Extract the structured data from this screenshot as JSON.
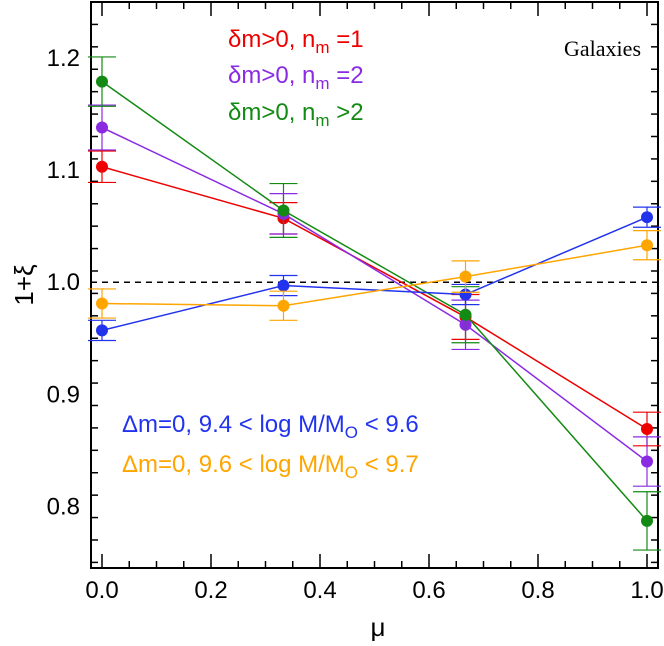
{
  "chart_data": {
    "type": "line",
    "title": "Galaxies",
    "xlabel": "μ",
    "ylabel": "1+ξ",
    "xlim": [
      -0.02,
      1.02
    ],
    "ylim": [
      0.745,
      1.25
    ],
    "xticks": [
      0.0,
      0.2,
      0.4,
      0.6,
      0.8,
      1.0
    ],
    "xtick_labels": [
      "0.0",
      "0.2",
      "0.4",
      "0.6",
      "0.8",
      "1.0"
    ],
    "yticks": [
      0.8,
      0.9,
      1.0,
      1.1,
      1.2
    ],
    "ytick_labels": [
      "0.8",
      "0.9",
      "1.0",
      "1.1",
      "1.2"
    ],
    "reference_line": 1.0,
    "x": [
      0.0,
      0.333,
      0.667,
      1.0
    ],
    "series": [
      {
        "name": "δm>0, n_m =1",
        "legend_main": "δm>0, n",
        "legend_sub": "m",
        "legend_tail": " =1",
        "color": "#ee0000",
        "values": [
          1.103,
          1.057,
          0.969,
          0.869
        ],
        "errors": [
          0.014,
          0.014,
          0.02,
          0.015
        ]
      },
      {
        "name": "δm>0, n_m =2",
        "legend_main": "δm>0, n",
        "legend_sub": "m",
        "legend_tail": " =2",
        "color": "#8a2be2",
        "values": [
          1.138,
          1.061,
          0.962,
          0.84
        ],
        "errors": [
          0.02,
          0.018,
          0.022,
          0.022
        ]
      },
      {
        "name": "δm>0, n_m >2",
        "legend_main": "δm>0, n",
        "legend_sub": "m",
        "legend_tail": " >2",
        "color": "#138a13",
        "values": [
          1.179,
          1.064,
          0.971,
          0.787
        ],
        "errors": [
          0.022,
          0.024,
          0.025,
          0.026
        ]
      },
      {
        "name": "Δm=0, 9.4 < log M/M_O < 9.6",
        "legend_main": "Δm=0,  9.4 < log M/M",
        "legend_sub": "O",
        "legend_tail": " < 9.6",
        "color": "#2233ee",
        "values": [
          0.957,
          0.997,
          0.989,
          1.058
        ],
        "errors": [
          0.009,
          0.009,
          0.009,
          0.009
        ]
      },
      {
        "name": "Δm=0, 9.6 < log M/M_O < 9.7",
        "legend_main": "Δm=0,  9.6 < log M/M",
        "legend_sub": "O",
        "legend_tail": " < 9.7",
        "color": "#ffa500",
        "values": [
          0.981,
          0.979,
          1.005,
          1.033
        ],
        "errors": [
          0.013,
          0.013,
          0.014,
          0.013
        ]
      }
    ]
  }
}
